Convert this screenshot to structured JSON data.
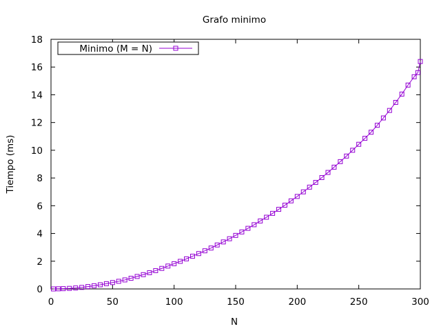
{
  "chart_data": {
    "type": "line",
    "title": "Grafo minimo",
    "xlabel": "N",
    "ylabel": "Tiempo (ms)",
    "xlim": [
      0,
      300
    ],
    "ylim": [
      0,
      18
    ],
    "x_ticks": [
      0,
      50,
      100,
      150,
      200,
      250,
      300
    ],
    "y_ticks": [
      0,
      2,
      4,
      6,
      8,
      10,
      12,
      14,
      16,
      18
    ],
    "grid": false,
    "legend_position": "top-left",
    "marker": "open-square",
    "series": [
      {
        "name": "Minimo (M = N)",
        "color": "#9400d3",
        "points": [
          [
            2,
            0.0
          ],
          [
            6,
            0.01
          ],
          [
            10,
            0.02
          ],
          [
            15,
            0.04
          ],
          [
            20,
            0.07
          ],
          [
            25,
            0.11
          ],
          [
            30,
            0.17
          ],
          [
            35,
            0.23
          ],
          [
            40,
            0.3
          ],
          [
            45,
            0.38
          ],
          [
            50,
            0.46
          ],
          [
            55,
            0.55
          ],
          [
            60,
            0.65
          ],
          [
            65,
            0.77
          ],
          [
            70,
            0.9
          ],
          [
            75,
            1.03
          ],
          [
            80,
            1.17
          ],
          [
            85,
            1.32
          ],
          [
            90,
            1.48
          ],
          [
            95,
            1.65
          ],
          [
            100,
            1.82
          ],
          [
            105,
            1.99
          ],
          [
            110,
            2.17
          ],
          [
            115,
            2.36
          ],
          [
            120,
            2.55
          ],
          [
            125,
            2.75
          ],
          [
            130,
            2.95
          ],
          [
            135,
            3.17
          ],
          [
            140,
            3.39
          ],
          [
            145,
            3.62
          ],
          [
            150,
            3.86
          ],
          [
            155,
            4.11
          ],
          [
            160,
            4.37
          ],
          [
            165,
            4.63
          ],
          [
            170,
            4.9
          ],
          [
            175,
            5.17
          ],
          [
            180,
            5.45
          ],
          [
            185,
            5.74
          ],
          [
            190,
            6.04
          ],
          [
            195,
            6.35
          ],
          [
            200,
            6.67
          ],
          [
            205,
            7.0
          ],
          [
            210,
            7.34
          ],
          [
            215,
            7.68
          ],
          [
            220,
            8.03
          ],
          [
            225,
            8.4
          ],
          [
            230,
            8.78
          ],
          [
            235,
            9.18
          ],
          [
            240,
            9.58
          ],
          [
            245,
            10.0
          ],
          [
            250,
            10.43
          ],
          [
            255,
            10.86
          ],
          [
            260,
            11.3
          ],
          [
            265,
            11.8
          ],
          [
            270,
            12.33
          ],
          [
            275,
            12.87
          ],
          [
            280,
            13.45
          ],
          [
            285,
            14.05
          ],
          [
            290,
            14.7
          ],
          [
            295,
            15.3
          ],
          [
            298,
            15.6
          ],
          [
            300,
            16.4
          ]
        ]
      }
    ]
  }
}
